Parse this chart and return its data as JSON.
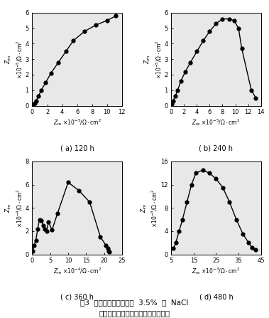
{
  "subplots": [
    {
      "label": "( a) 120 h",
      "exp": "-5",
      "xlim": [
        0,
        12
      ],
      "ylim": [
        0,
        6
      ],
      "xticks": [
        0,
        2,
        4,
        6,
        8,
        10,
        12
      ],
      "yticks": [
        0,
        1,
        2,
        3,
        4,
        5,
        6
      ],
      "re": [
        0.1,
        0.3,
        0.5,
        0.8,
        1.2,
        1.8,
        2.5,
        3.5,
        4.5,
        5.5,
        7.0,
        8.5,
        10.0,
        11.2
      ],
      "im": [
        0.05,
        0.15,
        0.3,
        0.6,
        1.0,
        1.5,
        2.1,
        2.8,
        3.5,
        4.2,
        4.8,
        5.2,
        5.5,
        5.8
      ]
    },
    {
      "label": "( b) 240 h",
      "exp": "-5",
      "xlim": [
        0,
        14
      ],
      "ylim": [
        0,
        6
      ],
      "xticks": [
        0,
        2,
        4,
        6,
        8,
        10,
        12,
        14
      ],
      "yticks": [
        0,
        1,
        2,
        3,
        4,
        5,
        6
      ],
      "re": [
        0.1,
        0.3,
        0.6,
        1.0,
        1.5,
        2.2,
        3.0,
        4.0,
        5.0,
        6.0,
        7.0,
        8.0,
        9.0,
        9.8,
        10.5,
        11.0,
        12.5,
        13.2
      ],
      "im": [
        0.1,
        0.3,
        0.6,
        1.0,
        1.6,
        2.2,
        2.8,
        3.5,
        4.2,
        4.8,
        5.3,
        5.6,
        5.6,
        5.5,
        5.0,
        3.7,
        1.0,
        0.5
      ]
    },
    {
      "label": "( c) 360 h",
      "exp": "-4",
      "xlim": [
        0,
        25
      ],
      "ylim": [
        0,
        8
      ],
      "xticks": [
        0,
        5,
        10,
        15,
        20,
        25
      ],
      "yticks": [
        0,
        2,
        4,
        6,
        8
      ],
      "re": [
        0.2,
        0.5,
        1.0,
        1.5,
        2.0,
        2.5,
        3.0,
        3.5,
        4.0,
        4.5,
        5.5,
        7.0,
        10.0,
        13.0,
        16.0,
        19.0,
        20.5,
        21.0,
        21.2,
        21.5
      ],
      "im": [
        0.3,
        0.8,
        1.2,
        2.2,
        3.0,
        2.9,
        2.5,
        2.2,
        2.0,
        2.8,
        2.1,
        3.5,
        6.2,
        5.5,
        4.5,
        1.5,
        0.8,
        0.5,
        0.3,
        0.2
      ]
    },
    {
      "label": "( d) 480 h",
      "exp": "-3",
      "xlim": [
        5,
        45
      ],
      "ylim": [
        0,
        16
      ],
      "xticks": [
        5,
        15,
        25,
        35,
        45
      ],
      "yticks": [
        0,
        4,
        8,
        12,
        16
      ],
      "re": [
        6.0,
        7.0,
        8.5,
        10.0,
        12.0,
        14.0,
        16.0,
        19.0,
        22.0,
        25.0,
        28.0,
        31.0,
        34.0,
        37.0,
        39.5,
        41.0,
        42.5
      ],
      "im": [
        1.0,
        2.0,
        4.0,
        6.0,
        9.0,
        12.0,
        14.0,
        14.5,
        14.0,
        13.0,
        11.5,
        9.0,
        6.0,
        3.5,
        2.0,
        1.2,
        0.8
      ]
    }
  ],
  "figure_caption_line1": "图3  涂层体系在质量分数  3.5%  的  NaCl",
  "figure_caption_line2": "溶液中不同浸泡时间的交流阻抗谱图",
  "bg_color": "#e8e8e8",
  "marker": "o",
  "markersize": 3.5,
  "linewidth": 1.0,
  "color": "black"
}
